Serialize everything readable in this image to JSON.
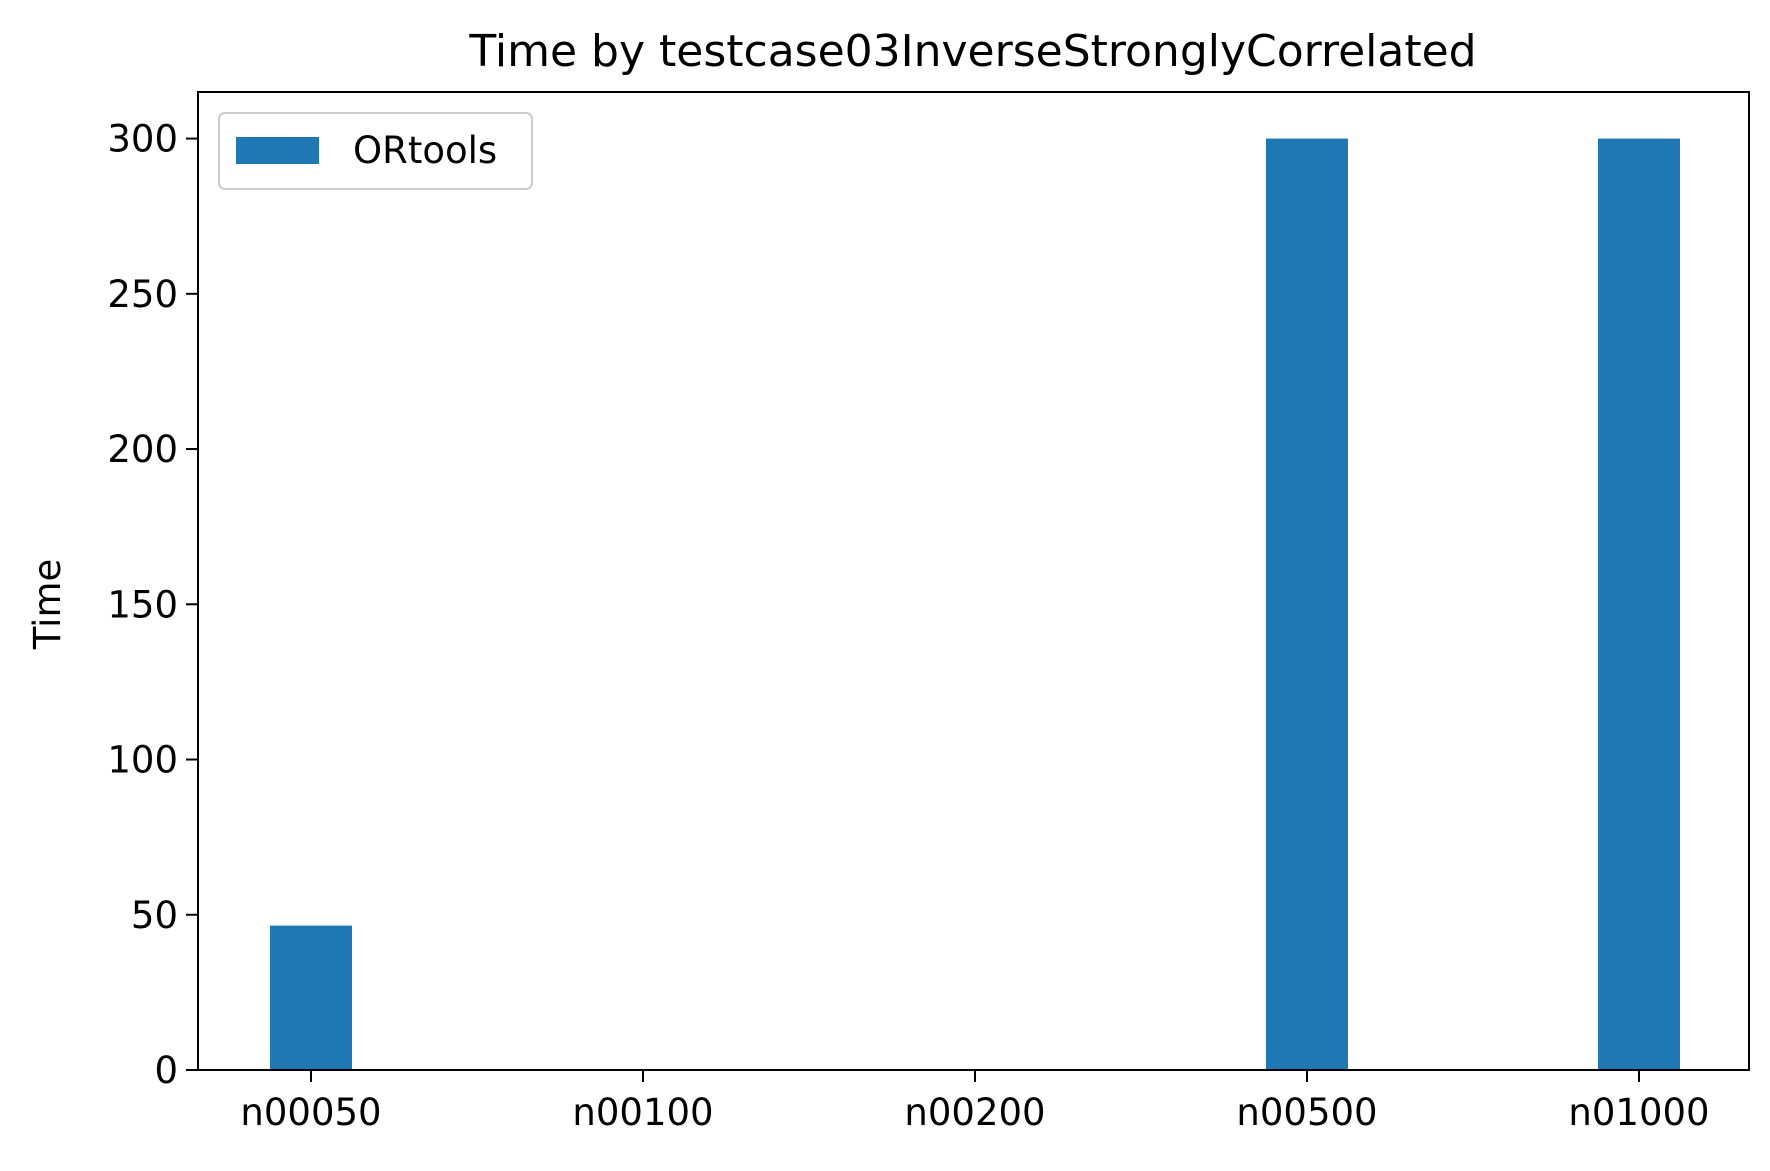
{
  "chart_data": {
    "type": "bar",
    "title": "Time by testcase03InverseStronglyCorrelated",
    "xlabel": "",
    "ylabel": "Time",
    "categories": [
      "n00050",
      "n00100",
      "n00200",
      "n00500",
      "n01000"
    ],
    "series": [
      {
        "name": "ORtools",
        "color": "#1f77b4",
        "values": [
          46.5,
          0,
          0,
          300,
          300
        ]
      }
    ],
    "yticks": [
      0,
      50,
      100,
      150,
      200,
      250,
      300
    ],
    "ylim": [
      0,
      315
    ],
    "legend": {
      "position": "top-left"
    },
    "grid": false
  }
}
